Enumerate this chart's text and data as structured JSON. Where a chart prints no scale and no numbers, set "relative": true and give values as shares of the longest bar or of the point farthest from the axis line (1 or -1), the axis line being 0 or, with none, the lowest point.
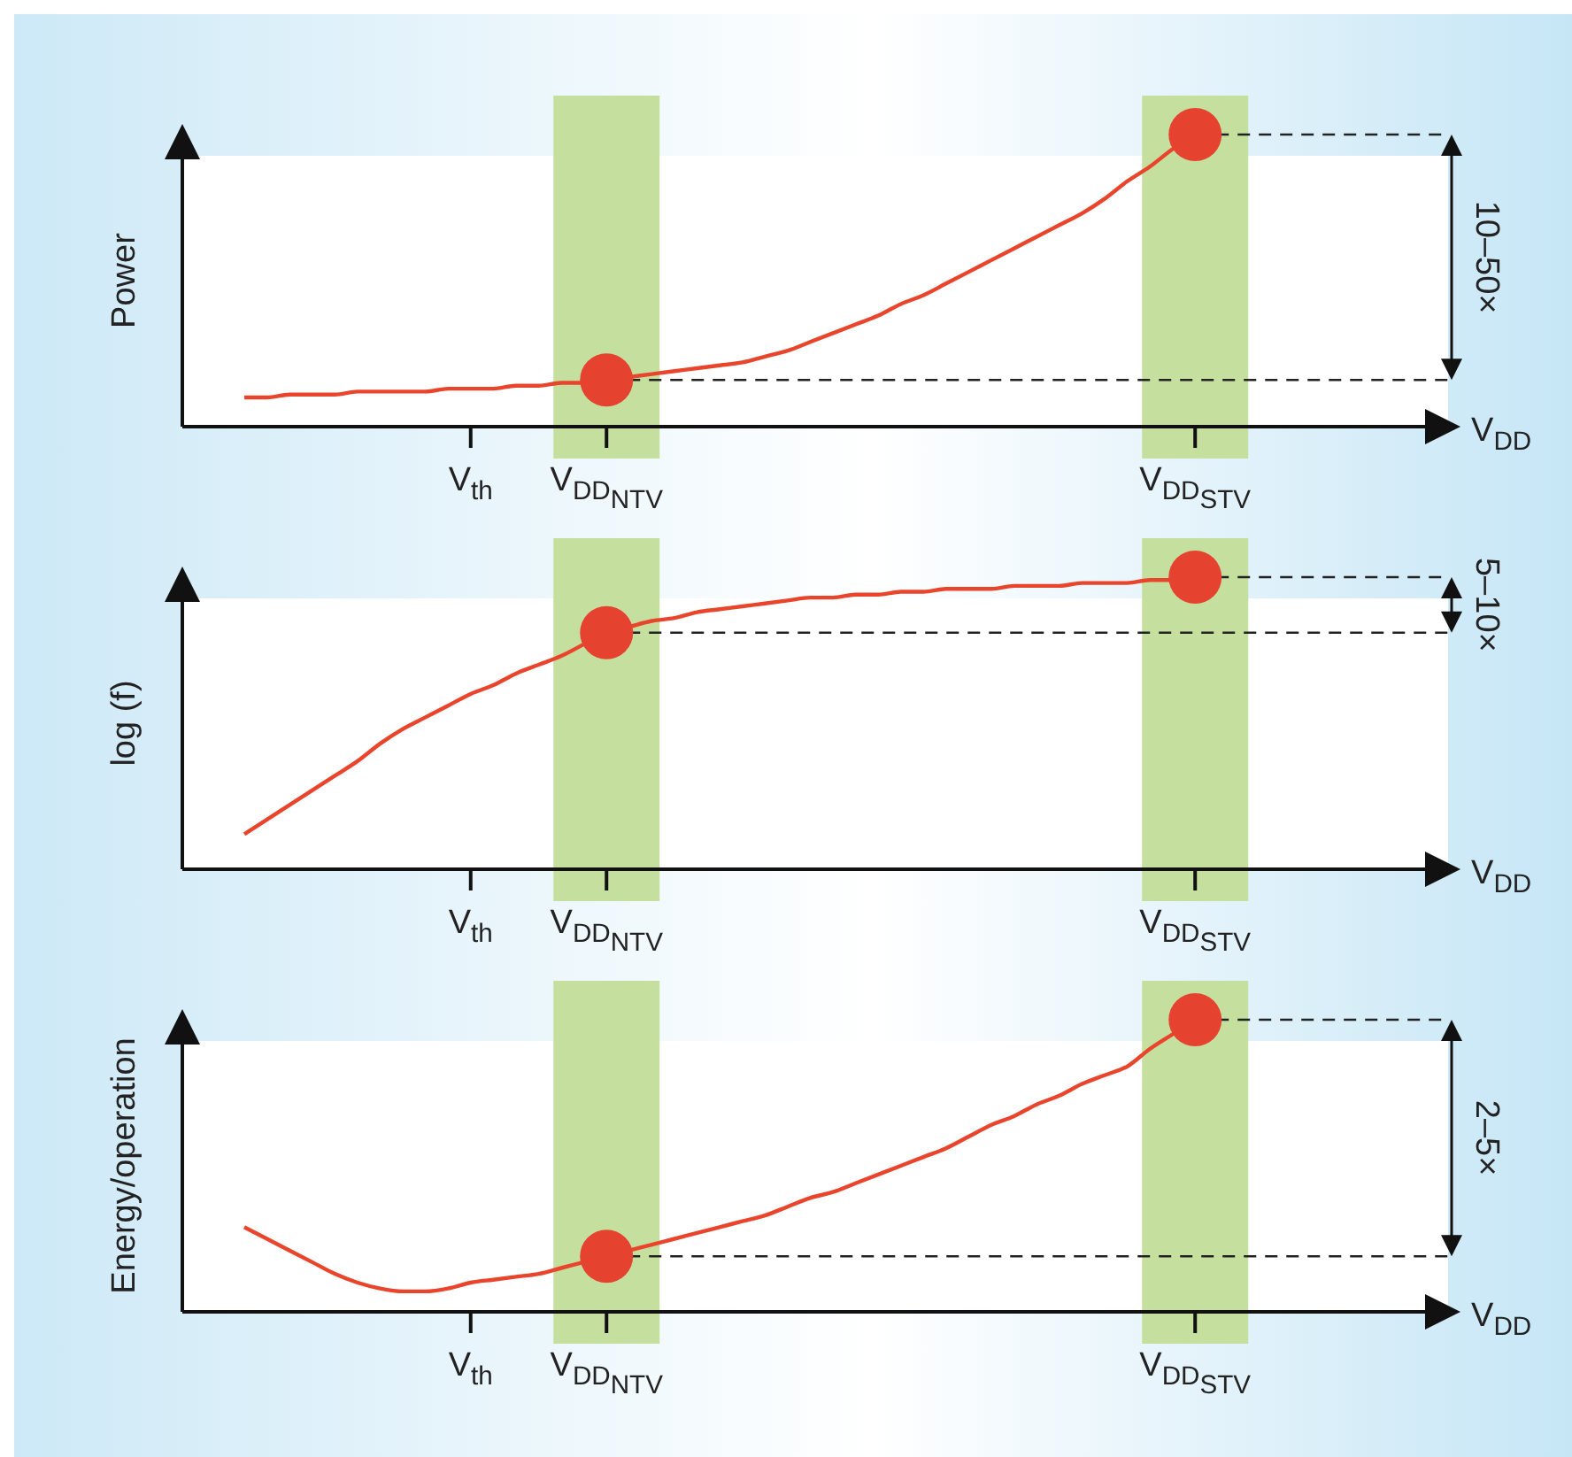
{
  "chart_data": [
    {
      "type": "line",
      "ylabel": "Power",
      "xlabel": "V$_{DD}$",
      "relative": true,
      "categories": [
        null,
        null,
        null,
        null,
        null,
        null,
        null,
        null,
        null,
        null,
        "V$_{th}$",
        null,
        null,
        null,
        null,
        null,
        "V$_{DD}$$_{NTV}$",
        null,
        null,
        null,
        null,
        null,
        null,
        null,
        null,
        null,
        null,
        null,
        null,
        null,
        null,
        null,
        null,
        null,
        null,
        null,
        null,
        null,
        null,
        null,
        null,
        null,
        "V$_{DD}$$_{STV}$",
        null,
        null,
        null,
        null,
        null,
        null,
        null,
        null,
        null,
        null
      ],
      "series": [
        {
          "color": "#e8452c",
          "marker": "none",
          "values": [
            0.1,
            0.1,
            0.11,
            0.11,
            0.11,
            0.12,
            0.12,
            0.12,
            0.12,
            0.13,
            0.13,
            0.13,
            0.14,
            0.14,
            0.15,
            0.15,
            0.16,
            0.17,
            0.18,
            0.19,
            0.2,
            0.21,
            0.22,
            0.24,
            0.26,
            0.29,
            0.32,
            0.35,
            0.38,
            0.42,
            0.45,
            0.49,
            0.53,
            0.57,
            0.61,
            0.65,
            0.69,
            0.73,
            0.78,
            0.84,
            0.89,
            0.95,
            1,
            null,
            null,
            null,
            null,
            null,
            null,
            null,
            null,
            null,
            null
          ]
        },
        {
          "type": "scatter",
          "color": "#e5432f",
          "marker": "circle",
          "values": [
            null,
            null,
            null,
            null,
            null,
            null,
            null,
            null,
            null,
            null,
            null,
            null,
            null,
            null,
            null,
            null,
            0.16,
            null,
            null,
            null,
            null,
            null,
            null,
            null,
            null,
            null,
            null,
            null,
            null,
            null,
            null,
            null,
            null,
            null,
            null,
            null,
            null,
            null,
            null,
            null,
            null,
            null,
            1,
            null,
            null,
            null,
            null,
            null,
            null,
            null,
            null,
            null,
            null
          ]
        }
      ],
      "ref_lines": [
        {
          "axis": "y",
          "value": 0.16,
          "line_style": "dashed"
        },
        {
          "axis": "y",
          "value": 1,
          "line_style": "dashed"
        }
      ],
      "annotations": [
        "10–50×"
      ]
    },
    {
      "type": "line",
      "ylabel": "log (f)",
      "xlabel": "V$_{DD}$",
      "relative": true,
      "categories": [
        null,
        null,
        null,
        null,
        null,
        null,
        null,
        null,
        null,
        null,
        "V$_{th}$",
        null,
        null,
        null,
        null,
        null,
        "V$_{DD}$$_{NTV}$",
        null,
        null,
        null,
        null,
        null,
        null,
        null,
        null,
        null,
        null,
        null,
        null,
        null,
        null,
        null,
        null,
        null,
        null,
        null,
        null,
        null,
        null,
        null,
        null,
        null,
        "V$_{DD}$$_{STV}$",
        null,
        null,
        null,
        null,
        null,
        null,
        null,
        null,
        null,
        null
      ],
      "series": [
        {
          "color": "#e8452c",
          "marker": "none",
          "values": [
            0.12,
            0.17,
            0.22,
            0.27,
            0.32,
            0.37,
            0.43,
            0.48,
            0.52,
            0.56,
            0.6,
            0.63,
            0.67,
            0.7,
            0.73,
            0.77,
            0.81,
            0.83,
            0.85,
            0.86,
            0.88,
            0.89,
            0.9,
            0.91,
            0.92,
            0.93,
            0.93,
            0.94,
            0.94,
            0.95,
            0.95,
            0.96,
            0.96,
            0.96,
            0.97,
            0.97,
            0.97,
            0.98,
            0.98,
            0.98,
            0.99,
            0.99,
            1,
            null,
            null,
            null,
            null,
            null,
            null,
            null,
            null,
            null,
            null
          ]
        },
        {
          "type": "scatter",
          "color": "#e5432f",
          "marker": "circle",
          "values": [
            null,
            null,
            null,
            null,
            null,
            null,
            null,
            null,
            null,
            null,
            null,
            null,
            null,
            null,
            null,
            null,
            0.81,
            null,
            null,
            null,
            null,
            null,
            null,
            null,
            null,
            null,
            null,
            null,
            null,
            null,
            null,
            null,
            null,
            null,
            null,
            null,
            null,
            null,
            null,
            null,
            null,
            null,
            1,
            null,
            null,
            null,
            null,
            null,
            null,
            null,
            null,
            null,
            null
          ]
        }
      ],
      "ref_lines": [
        {
          "axis": "y",
          "value": 0.81,
          "line_style": "dashed"
        },
        {
          "axis": "y",
          "value": 1,
          "line_style": "dashed"
        }
      ],
      "annotations": [
        "5–10×"
      ]
    },
    {
      "type": "line",
      "ylabel": "Energy/operation",
      "xlabel": "V$_{DD}$",
      "relative": true,
      "categories": [
        null,
        null,
        null,
        null,
        null,
        null,
        null,
        null,
        null,
        null,
        "V$_{th}$",
        null,
        null,
        null,
        null,
        null,
        "V$_{DD}$$_{NTV}$",
        null,
        null,
        null,
        null,
        null,
        null,
        null,
        null,
        null,
        null,
        null,
        null,
        null,
        null,
        null,
        null,
        null,
        null,
        null,
        null,
        null,
        null,
        null,
        null,
        null,
        "V$_{DD}$$_{STV}$",
        null,
        null,
        null,
        null,
        null,
        null,
        null,
        null,
        null,
        null
      ],
      "series": [
        {
          "color": "#e8452c",
          "marker": "none",
          "values": [
            0.29,
            0.25,
            0.21,
            0.17,
            0.13,
            0.1,
            0.08,
            0.07,
            0.07,
            0.08,
            0.1,
            0.11,
            0.12,
            0.13,
            0.15,
            0.17,
            0.19,
            0.21,
            0.23,
            0.25,
            0.27,
            0.29,
            0.31,
            0.33,
            0.36,
            0.39,
            0.41,
            0.44,
            0.47,
            0.5,
            0.53,
            0.56,
            0.6,
            0.64,
            0.67,
            0.71,
            0.74,
            0.78,
            0.81,
            0.84,
            0.9,
            0.95,
            1,
            null,
            null,
            null,
            null,
            null,
            null,
            null,
            null,
            null,
            null
          ]
        },
        {
          "type": "scatter",
          "color": "#e5432f",
          "marker": "circle",
          "values": [
            null,
            null,
            null,
            null,
            null,
            null,
            null,
            null,
            null,
            null,
            null,
            null,
            null,
            null,
            null,
            null,
            0.19,
            null,
            null,
            null,
            null,
            null,
            null,
            null,
            null,
            null,
            null,
            null,
            null,
            null,
            null,
            null,
            null,
            null,
            null,
            null,
            null,
            null,
            null,
            null,
            null,
            null,
            1,
            null,
            null,
            null,
            null,
            null,
            null,
            null,
            null,
            null,
            null
          ]
        }
      ],
      "ref_lines": [
        {
          "axis": "y",
          "value": 0.19,
          "line_style": "dashed"
        },
        {
          "axis": "y",
          "value": 1,
          "line_style": "dashed"
        }
      ],
      "annotations": [
        "2–5×"
      ]
    }
  ]
}
